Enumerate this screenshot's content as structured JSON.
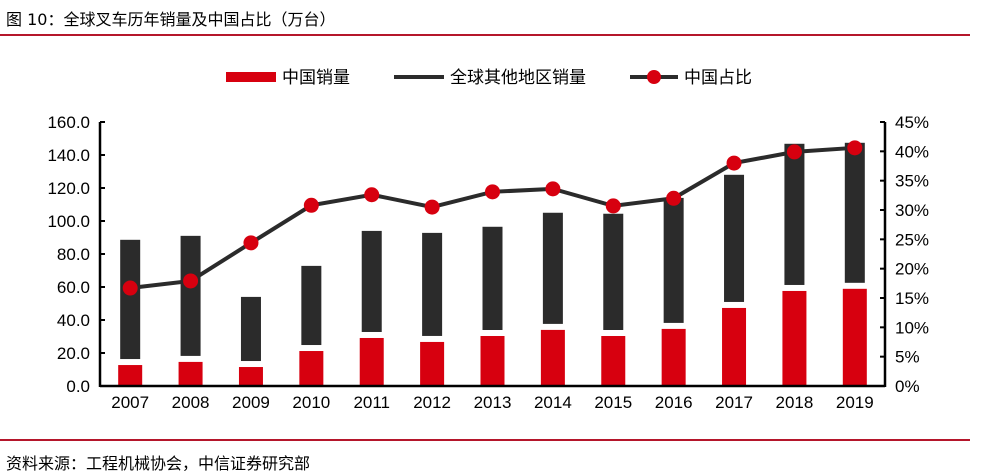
{
  "title": "图 10：全球叉车历年销量及中国占比（万台）",
  "source": "资料来源：工程机械协会，中信证券研究部",
  "chart_data": {
    "type": "bar",
    "stacked": true,
    "categories": [
      "2007",
      "2008",
      "2009",
      "2010",
      "2011",
      "2012",
      "2013",
      "2014",
      "2015",
      "2016",
      "2017",
      "2018",
      "2019"
    ],
    "series": [
      {
        "name": "中国销量",
        "kind": "bar",
        "axis": "left",
        "color": "#d7000f",
        "values": [
          12.7,
          14.6,
          11.5,
          21.2,
          29.1,
          26.7,
          30.3,
          34.0,
          30.3,
          34.6,
          47.3,
          57.6,
          58.9
        ]
      },
      {
        "name": "全球其他地区销量",
        "kind": "bar",
        "axis": "left",
        "color": "#2b2b2b",
        "values": [
          75.9,
          76.4,
          42.5,
          51.6,
          64.9,
          66.1,
          66.2,
          71.0,
          74.1,
          79.4,
          80.7,
          89.2,
          88.5
        ]
      },
      {
        "name": "中国占比",
        "kind": "line",
        "axis": "right",
        "color": "#d7000f",
        "line_color": "#2b2b2b",
        "values": [
          16.7,
          17.9,
          24.4,
          30.8,
          32.6,
          30.5,
          33.1,
          33.6,
          30.7,
          32.0,
          38.0,
          39.9,
          40.6
        ]
      }
    ],
    "ylim": [
      0,
      160
    ],
    "y_ticks": [
      "0.0",
      "20.0",
      "40.0",
      "60.0",
      "80.0",
      "100.0",
      "120.0",
      "140.0",
      "160.0"
    ],
    "y2lim": [
      0,
      45
    ],
    "y2_ticks": [
      "0%",
      "5%",
      "10%",
      "15%",
      "20%",
      "25%",
      "30%",
      "35%",
      "40%",
      "45%"
    ],
    "grid": false,
    "legend": "top"
  }
}
